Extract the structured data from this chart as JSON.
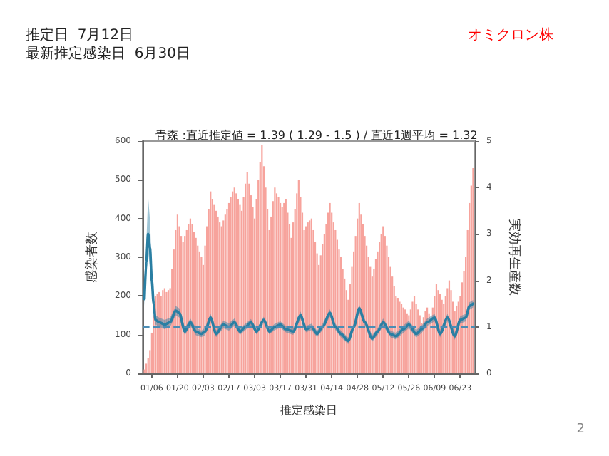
{
  "chart_data": {
    "type": "bar",
    "title": "青森 :直近推定値 = 1.39 ( 1.29 - 1.5 ) / 直近1週平均 = 1.32",
    "xlabel": "推定感染日",
    "ylabel": "感染者数",
    "y2label": "実効再生産数",
    "annotations": [
      "推定日  7月12日",
      "最新推定感染日  6月30日",
      "オミクロン株",
      "2"
    ],
    "x": [
      "--01-02",
      "--01-03",
      "--01-04",
      "--01-05",
      "--01-06",
      "--01-07",
      "--01-08",
      "--01-09",
      "--01-10",
      "--01-11",
      "--01-12",
      "--01-13",
      "--01-14",
      "--01-15",
      "--01-16",
      "--01-17",
      "--01-18",
      "--01-19",
      "--01-20",
      "--01-21",
      "--01-22",
      "--01-23",
      "--01-24",
      "--01-25",
      "--01-26",
      "--01-27",
      "--01-28",
      "--01-29",
      "--01-30",
      "--01-31",
      "--02-01",
      "--02-02",
      "--02-03",
      "--02-04",
      "--02-05",
      "--02-06",
      "--02-07",
      "--02-08",
      "--02-09",
      "--02-10",
      "--02-11",
      "--02-12",
      "--02-13",
      "--02-14",
      "--02-15",
      "--02-16",
      "--02-17",
      "--02-18",
      "--02-19",
      "--02-20",
      "--02-21",
      "--02-22",
      "--02-23",
      "--02-24",
      "--02-25",
      "--02-26",
      "--02-27",
      "--02-28",
      "--03-01",
      "--03-02",
      "--03-03",
      "--03-04",
      "--03-05",
      "--03-06",
      "--03-07",
      "--03-08",
      "--03-09",
      "--03-10",
      "--03-11",
      "--03-12",
      "--03-13",
      "--03-14",
      "--03-15",
      "--03-16",
      "--03-17",
      "--03-18",
      "--03-19",
      "--03-20",
      "--03-21",
      "--03-22",
      "--03-23",
      "--03-24",
      "--03-25",
      "--03-26",
      "--03-27",
      "--03-28",
      "--03-29",
      "--03-30",
      "--03-31",
      "--04-01",
      "--04-02",
      "--04-03",
      "--04-04",
      "--04-05",
      "--04-06",
      "--04-07",
      "--04-08",
      "--04-09",
      "--04-10",
      "--04-11",
      "--04-12",
      "--04-13",
      "--04-14",
      "--04-15",
      "--04-16",
      "--04-17",
      "--04-18",
      "--04-19",
      "--04-20",
      "--04-21",
      "--04-22",
      "--04-23",
      "--04-24",
      "--04-25",
      "--04-26",
      "--04-27",
      "--04-28",
      "--04-29",
      "--04-30",
      "--05-01",
      "--05-02",
      "--05-03",
      "--05-04",
      "--05-05",
      "--05-06",
      "--05-07",
      "--05-08",
      "--05-09",
      "--05-10",
      "--05-11",
      "--05-12",
      "--05-13",
      "--05-14",
      "--05-15",
      "--05-16",
      "--05-17",
      "--05-18",
      "--05-19",
      "--05-20",
      "--05-21",
      "--05-22",
      "--05-23",
      "--05-24",
      "--05-25",
      "--05-26",
      "--05-27",
      "--05-28",
      "--05-29",
      "--05-30",
      "--05-31",
      "--06-01",
      "--06-02",
      "--06-03",
      "--06-04",
      "--06-05",
      "--06-06",
      "--06-07",
      "--06-08",
      "--06-09",
      "--06-10",
      "--06-11",
      "--06-12",
      "--06-13",
      "--06-14",
      "--06-15",
      "--06-16",
      "--06-17",
      "--06-18",
      "--06-19",
      "--06-20",
      "--06-21",
      "--06-22",
      "--06-23",
      "--06-24",
      "--06-25",
      "--06-26",
      "--06-27",
      "--06-28",
      "--06-29",
      "--06-30"
    ],
    "series": [
      {
        "color": "#f7a39c",
        "values": [
          10,
          25,
          40,
          60,
          105,
          150,
          200,
          205,
          210,
          200,
          215,
          220,
          210,
          215,
          220,
          270,
          320,
          370,
          410,
          380,
          355,
          340,
          355,
          370,
          385,
          400,
          385,
          365,
          350,
          330,
          315,
          300,
          280,
          330,
          380,
          425,
          470,
          450,
          435,
          420,
          405,
          390,
          380,
          395,
          410,
          425,
          440,
          455,
          470,
          480,
          465,
          450,
          435,
          420,
          455,
          490,
          520,
          490,
          460,
          430,
          400,
          450,
          500,
          545,
          590,
          535,
          480,
          425,
          370,
          405,
          445,
          480,
          465,
          455,
          440,
          430,
          440,
          450,
          415,
          385,
          350,
          390,
          425,
          465,
          500,
          455,
          415,
          370,
          380,
          390,
          395,
          400,
          370,
          340,
          310,
          280,
          305,
          335,
          360,
          385,
          415,
          440,
          415,
          390,
          370,
          345,
          320,
          300,
          270,
          245,
          215,
          190,
          230,
          275,
          315,
          355,
          400,
          440,
          410,
          385,
          355,
          330,
          300,
          275,
          250,
          270,
          295,
          315,
          340,
          360,
          380,
          355,
          330,
          300,
          275,
          250,
          225,
          200,
          195,
          185,
          180,
          170,
          165,
          155,
          150,
          165,
          185,
          200,
          180,
          165,
          150,
          130,
          145,
          160,
          170,
          155,
          140,
          170,
          200,
          230,
          215,
          205,
          190,
          180,
          200,
          220,
          240,
          215,
          185,
          160,
          175,
          185,
          200,
          235,
          265,
          300,
          370,
          440,
          485,
          530
        ]
      },
      {
        "type": "line",
        "axis": "y2",
        "color": "#2a7fa3",
        "x": [
          "--01-02",
          "--01-03",
          "--01-04",
          "--01-05",
          "--01-06",
          "--01-07",
          "--01-08",
          "--01-10",
          "--01-13",
          "--01-16",
          "--01-19",
          "--01-21",
          "--01-24",
          "--01-27",
          "--01-30",
          "--02-02",
          "--02-04",
          "--02-07",
          "--02-10",
          "--02-14",
          "--02-17",
          "--02-20",
          "--02-23",
          "--02-26",
          "--03-01",
          "--03-04",
          "--03-08",
          "--03-11",
          "--03-14",
          "--03-17",
          "--03-20",
          "--03-24",
          "--03-28",
          "--03-31",
          "--04-03",
          "--04-06",
          "--04-09",
          "--04-13",
          "--04-16",
          "--04-19",
          "--04-23",
          "--04-26",
          "--04-29",
          "--05-02",
          "--05-06",
          "--05-09",
          "--05-12",
          "--05-16",
          "--05-19",
          "--05-23",
          "--05-26",
          "--05-30",
          "--06-02",
          "--06-05",
          "--06-09",
          "--06-12",
          "--06-16",
          "--06-20",
          "--06-23",
          "--06-26",
          "--06-28",
          "--06-30"
        ],
        "values": [
          1.6,
          2.4,
          3.0,
          2.7,
          2.0,
          1.5,
          1.15,
          1.1,
          1.05,
          1.1,
          1.35,
          1.3,
          0.9,
          1.1,
          0.9,
          0.85,
          0.9,
          1.2,
          0.85,
          1.05,
          1.0,
          1.1,
          0.9,
          1.0,
          1.1,
          0.9,
          1.15,
          0.9,
          1.0,
          1.05,
          0.95,
          0.9,
          1.25,
          0.95,
          1.0,
          0.85,
          1.0,
          1.3,
          1.0,
          0.85,
          0.7,
          1.0,
          1.4,
          1.1,
          0.75,
          0.9,
          1.1,
          0.85,
          0.8,
          0.95,
          1.05,
          0.85,
          0.95,
          1.1,
          1.2,
          0.85,
          1.2,
          0.8,
          1.15,
          1.2,
          1.45,
          1.5
        ],
        "lower": [
          1.45,
          2.1,
          2.6,
          2.3,
          1.8,
          1.4,
          1.05,
          1.0,
          0.95,
          1.0,
          1.25,
          1.2,
          0.82,
          1.02,
          0.82,
          0.78,
          0.82,
          1.12,
          0.78,
          0.97,
          0.92,
          1.02,
          0.83,
          0.93,
          1.03,
          0.84,
          1.08,
          0.84,
          0.93,
          0.98,
          0.88,
          0.83,
          1.17,
          0.88,
          0.93,
          0.78,
          0.93,
          1.22,
          0.93,
          0.78,
          0.63,
          0.92,
          1.32,
          1.03,
          0.68,
          0.83,
          1.02,
          0.78,
          0.73,
          0.87,
          0.97,
          0.77,
          0.87,
          1.02,
          1.12,
          0.77,
          1.12,
          0.72,
          1.07,
          1.12,
          1.37,
          1.42
        ],
        "upper": [
          1.75,
          2.8,
          3.8,
          3.3,
          2.3,
          1.65,
          1.25,
          1.2,
          1.15,
          1.2,
          1.45,
          1.4,
          0.98,
          1.18,
          0.98,
          0.92,
          0.98,
          1.28,
          0.92,
          1.13,
          1.08,
          1.18,
          0.97,
          1.07,
          1.17,
          0.96,
          1.22,
          0.96,
          1.07,
          1.12,
          1.02,
          0.97,
          1.33,
          1.02,
          1.07,
          0.92,
          1.07,
          1.38,
          1.07,
          0.92,
          0.77,
          1.08,
          1.48,
          1.17,
          0.82,
          0.97,
          1.18,
          0.92,
          0.87,
          1.03,
          1.13,
          0.93,
          1.03,
          1.18,
          1.28,
          0.93,
          1.28,
          0.88,
          1.23,
          1.28,
          1.53,
          1.58
        ]
      }
    ],
    "xlim": [
      "--01-01",
      "--07-01"
    ],
    "xticks": [
      {
        "value": "--01-06",
        "label": "01/06"
      },
      {
        "value": "--01-20",
        "label": "01/20"
      },
      {
        "value": "--02-03",
        "label": "02/03"
      },
      {
        "value": "--02-17",
        "label": "02/17"
      },
      {
        "value": "--03-03",
        "label": "03/03"
      },
      {
        "value": "--03-17",
        "label": "03/17"
      },
      {
        "value": "--03-31",
        "label": "03/31"
      },
      {
        "value": "--04-14",
        "label": "04/14"
      },
      {
        "value": "--04-28",
        "label": "04/28"
      },
      {
        "value": "--05-12",
        "label": "05/12"
      },
      {
        "value": "--05-26",
        "label": "05/26"
      },
      {
        "value": "--06-09",
        "label": "06/09"
      },
      {
        "value": "--06-23",
        "label": "06/23"
      }
    ],
    "ylim": [
      0,
      600
    ],
    "yticks": [
      0,
      100,
      200,
      300,
      400,
      500,
      600
    ],
    "y2lim": [
      0,
      5
    ],
    "y2ticks": [
      0,
      1,
      2,
      3,
      4,
      5
    ],
    "ref_lines": [
      {
        "axis": "y2",
        "value": 1,
        "color": "#4a8db5",
        "line_style": "dashed"
      }
    ],
    "marker": "none",
    "grid": false
  }
}
